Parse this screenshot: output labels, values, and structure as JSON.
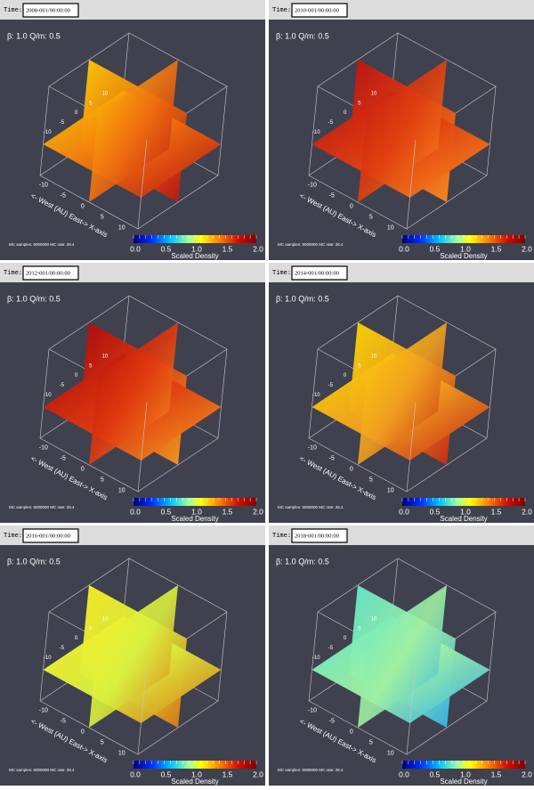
{
  "panels": [
    {
      "time": "2008-001/00:00:00"
    },
    {
      "time": "2010-001/00:00:00"
    },
    {
      "time": "2012-001/00:00:00"
    },
    {
      "time": "2014-001/00:00:00"
    },
    {
      "time": "2016-001/00:00:00"
    },
    {
      "time": "2018-001/00:00:00"
    }
  ],
  "common": {
    "time_label": "Time:",
    "params": "β: 1.0  Q/m: 0.5",
    "x_axis_label": "<- West (AU) East-> X-axis",
    "axis_ticks": [
      "-10",
      "-5",
      "0",
      "5",
      "10"
    ],
    "mc_info": "MC samples: 5000000  MC rate: 28.4",
    "colorbar_title": "Scaled Density",
    "colorbar_ticks": [
      "0.0",
      "0.5",
      "1.0",
      "1.5",
      "2.0"
    ]
  }
}
